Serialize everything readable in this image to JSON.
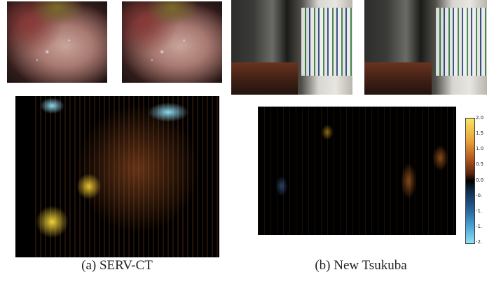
{
  "figure": {
    "panel_a": {
      "caption": "(a) SERV-CT",
      "left_image_alt": "endoscopic left view",
      "right_image_alt": "endoscopic right view"
    },
    "panel_b": {
      "caption": "(b) New Tsukuba",
      "left_image_alt": "office scene left view",
      "right_image_alt": "office scene right view"
    },
    "colorbar": {
      "ticks": [
        "2.0",
        "1.5",
        "1.0",
        "0.5",
        "0.0",
        "-0.",
        "-1.",
        "-1.",
        "-2."
      ],
      "colors": [
        "#f5e463",
        "#b0541c",
        "#000000",
        "#245f94",
        "#8ee2f2"
      ]
    }
  }
}
